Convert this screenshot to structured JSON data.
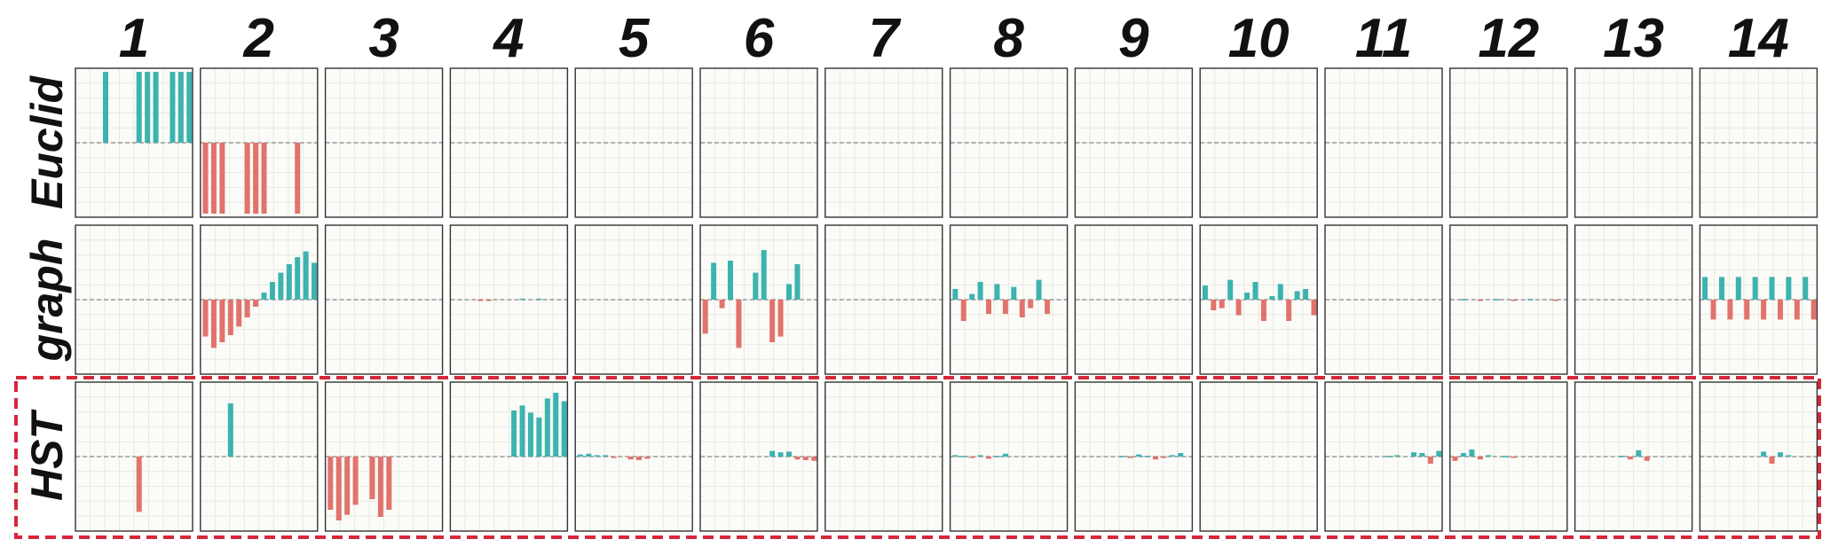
{
  "chart_data": {
    "type": "bar",
    "layout": "grid of small multiples, 3 rows by 14 columns",
    "grid": true,
    "zero_line": "dashed",
    "positive_color": "#3cb3b0",
    "negative_color": "#e1736c",
    "highlight_color": "#d62839",
    "highlighted_row": "HST",
    "columns": [
      "1",
      "2",
      "3",
      "4",
      "5",
      "6",
      "7",
      "8",
      "9",
      "10",
      "11",
      "12",
      "13",
      "14"
    ],
    "rows": [
      {
        "label": "Euclid",
        "panels": [
          [
            0,
            0,
            0,
            1,
            0,
            0,
            0,
            1,
            1,
            1,
            0,
            1,
            1,
            1
          ],
          [
            -1,
            -1,
            -1,
            0,
            0,
            -1,
            -1,
            -1,
            0,
            0,
            0,
            -1,
            0,
            0
          ],
          [],
          [],
          [],
          [],
          [],
          [],
          [],
          [],
          [],
          [],
          [],
          []
        ]
      },
      {
        "label": "graph",
        "panels": [
          [],
          [
            -0.52,
            -0.68,
            -0.6,
            -0.5,
            -0.38,
            -0.25,
            -0.1,
            0.1,
            0.25,
            0.38,
            0.5,
            0.6,
            0.68,
            0.52
          ],
          [],
          [
            0,
            0,
            0,
            -0.015,
            -0.015,
            0,
            0,
            0,
            0.015,
            0,
            0.015,
            0,
            0,
            0
          ],
          [],
          [
            -0.48,
            0.52,
            -0.12,
            0.55,
            -0.68,
            0,
            0.38,
            0.7,
            -0.6,
            -0.52,
            0.22,
            0.5
          ],
          [],
          [
            0.15,
            -0.3,
            0.08,
            0.25,
            -0.2,
            0.22,
            -0.2,
            0.18,
            -0.25,
            -0.12,
            0.28,
            -0.2
          ],
          [],
          [
            0.2,
            -0.15,
            -0.12,
            0.28,
            -0.22,
            0.1,
            0.25,
            -0.3,
            0.05,
            0.22,
            -0.3,
            0.12,
            0.15,
            -0.22
          ],
          [],
          [
            0,
            0.01,
            0,
            -0.01,
            0,
            0.01,
            0,
            -0.01,
            0,
            0.01,
            0,
            0,
            -0.01,
            0
          ],
          [],
          [
            0.32,
            -0.28,
            0.32,
            -0.28,
            0.32,
            -0.28,
            0.32,
            -0.28,
            0.32,
            -0.28,
            0.32,
            -0.28,
            0.32,
            -0.28
          ]
        ]
      },
      {
        "label": "HST",
        "panels": [
          [
            0,
            0,
            0,
            0,
            0,
            0,
            0,
            -0.78,
            0,
            0,
            0,
            0,
            0,
            0
          ],
          [
            0,
            0,
            0,
            0.75,
            0,
            0,
            0,
            0,
            0,
            0,
            0,
            0,
            0,
            0
          ],
          [
            -0.75,
            -0.9,
            -0.82,
            -0.68,
            0,
            -0.6,
            -0.85,
            -0.75,
            0,
            0,
            0,
            0,
            0,
            0
          ],
          [
            0,
            0,
            0,
            0,
            0,
            0,
            0,
            0.65,
            0.72,
            0.62,
            0.55,
            0.82,
            0.9,
            0.78
          ],
          [
            0.03,
            0.04,
            0.02,
            0.02,
            -0.02,
            0,
            -0.04,
            -0.05,
            -0.03,
            0,
            0,
            0,
            0,
            0
          ],
          [
            0,
            0,
            0,
            0,
            0,
            0,
            0,
            0,
            0.08,
            0.06,
            0.07,
            -0.04,
            -0.05,
            -0.06
          ],
          [],
          [
            0.02,
            0.01,
            -0.02,
            0.02,
            -0.03,
            0.01,
            0.04,
            0,
            0,
            0,
            0,
            0,
            0,
            0
          ],
          [
            0,
            0,
            0,
            0,
            0,
            0.01,
            -0.02,
            0.03,
            0.01,
            -0.04,
            -0.02,
            0.02,
            0.05,
            0
          ],
          [],
          [
            0,
            0,
            0,
            0,
            0,
            0,
            0,
            0.01,
            0.02,
            0,
            0.06,
            0.05,
            -0.1,
            0.08
          ],
          [
            -0.06,
            0.05,
            0.1,
            -0.04,
            0.02,
            0,
            0.01,
            -0.01,
            0,
            0,
            0,
            0,
            0,
            0
          ],
          [
            0,
            0,
            0,
            0,
            0,
            0.01,
            -0.04,
            0.09,
            -0.06,
            0,
            0,
            0,
            0,
            0
          ],
          [
            0,
            0,
            0,
            0,
            0,
            0,
            0,
            0.07,
            -0.1,
            0.06,
            0.02,
            0,
            0,
            0
          ]
        ]
      }
    ]
  }
}
